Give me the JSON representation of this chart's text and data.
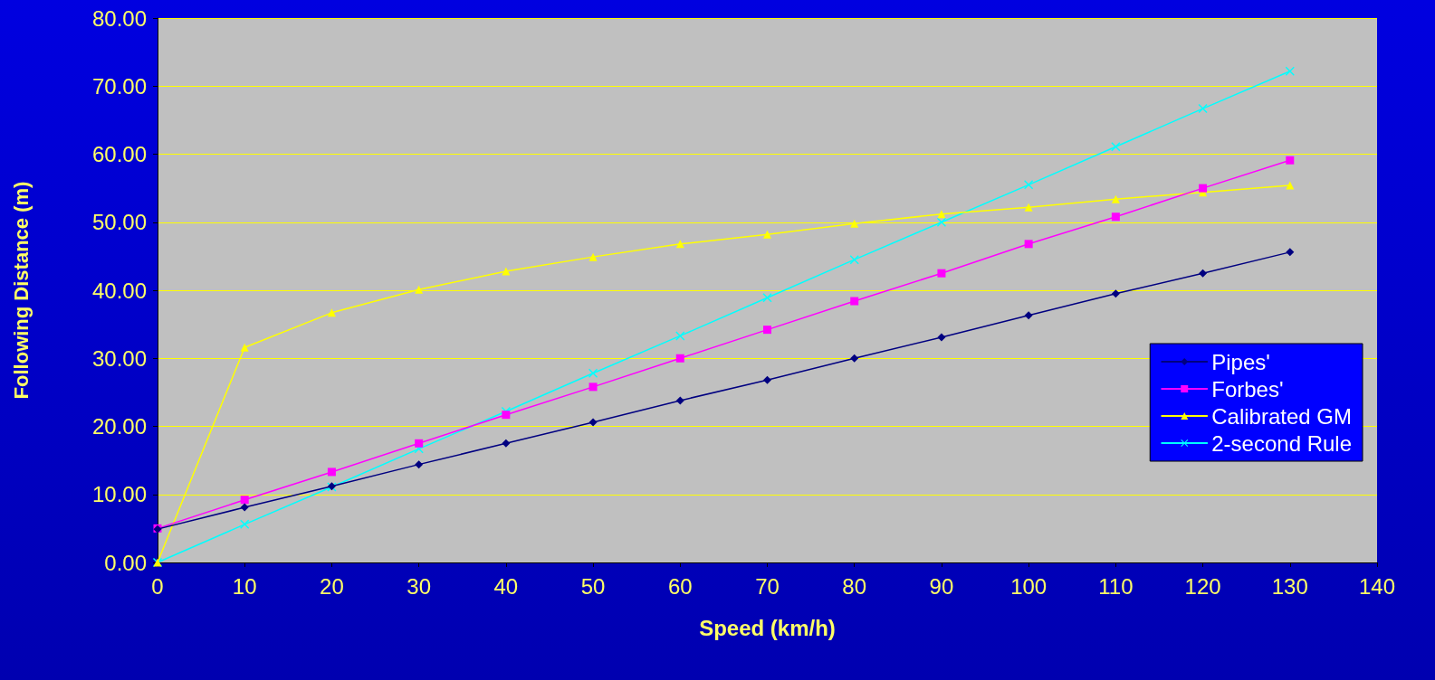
{
  "chart_data": {
    "type": "line",
    "xlabel": "Speed (km/h)",
    "ylabel": "Following Distance (m)",
    "x": [
      0,
      10,
      20,
      30,
      40,
      50,
      60,
      70,
      80,
      90,
      100,
      110,
      120,
      130
    ],
    "series": [
      {
        "name": "Pipes'",
        "color": "#000080",
        "marker": "diamond",
        "values": [
          4.9,
          8.1,
          11.2,
          14.4,
          17.5,
          20.6,
          23.8,
          26.8,
          30.0,
          33.1,
          36.3,
          39.5,
          42.5,
          45.6
        ]
      },
      {
        "name": "Forbes'",
        "color": "#ff00ff",
        "marker": "square",
        "values": [
          5.0,
          9.2,
          13.3,
          17.5,
          21.7,
          25.8,
          30.0,
          34.2,
          38.4,
          42.5,
          46.8,
          50.8,
          55.0,
          59.1
        ]
      },
      {
        "name": "Calibrated GM",
        "color": "#ffff00",
        "marker": "triangle",
        "values": [
          0,
          31.6,
          36.7,
          40.1,
          42.8,
          44.9,
          46.8,
          48.2,
          49.8,
          51.2,
          52.2,
          53.4,
          54.4,
          55.4
        ]
      },
      {
        "name": "2-second Rule",
        "color": "#00ffff",
        "marker": "cross",
        "values": [
          0,
          5.6,
          11.1,
          16.7,
          22.2,
          27.8,
          33.3,
          38.9,
          44.5,
          50.0,
          55.5,
          61.1,
          66.7,
          72.2
        ]
      }
    ],
    "xlim": [
      0,
      140
    ],
    "xticks": [
      0,
      10,
      20,
      30,
      40,
      50,
      60,
      70,
      80,
      90,
      100,
      110,
      120,
      130,
      140
    ],
    "ylim": [
      0,
      80
    ],
    "yticks": [
      {
        "value": 0,
        "label": "0.00"
      },
      {
        "value": 10,
        "label": "10.00"
      },
      {
        "value": 20,
        "label": "20.00"
      },
      {
        "value": 30,
        "label": "30.00"
      },
      {
        "value": 40,
        "label": "40.00"
      },
      {
        "value": 50,
        "label": "50.00"
      },
      {
        "value": 60,
        "label": "60.00"
      },
      {
        "value": 70,
        "label": "70.00"
      },
      {
        "value": 80,
        "label": "80.00"
      }
    ],
    "grid": "y",
    "legend": "right",
    "line_style": "solid"
  }
}
